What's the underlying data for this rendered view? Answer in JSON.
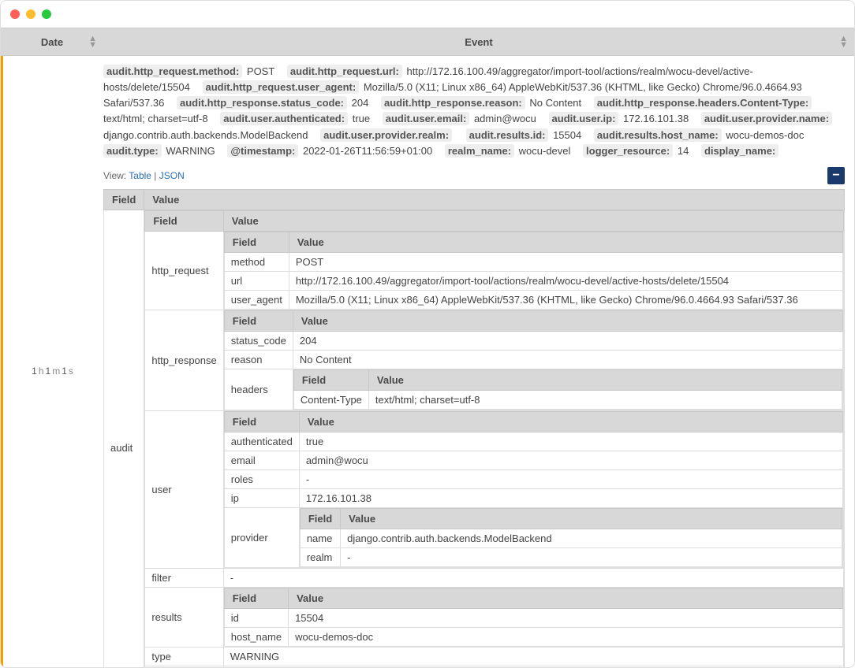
{
  "colors": {
    "header_bg": "#d8d8d8",
    "accent": "#f0a000",
    "chip_bg": "#eeeeee",
    "link": "#2a6fb5",
    "collapse_bg": "#1a3a6e",
    "border": "#dddddd"
  },
  "header": {
    "date": "Date",
    "event": "Event"
  },
  "date_cell": {
    "h": "1",
    "m": "1",
    "s": "1",
    "u_h": "h",
    "u_m": "m",
    "u_s": "s"
  },
  "th": {
    "field": "Field",
    "value": "Value"
  },
  "view": {
    "label": "View:",
    "table": "Table",
    "sep": "|",
    "json": "JSON"
  },
  "summary": [
    {
      "k": "audit.http_request.method:",
      "v": "POST"
    },
    {
      "k": "audit.http_request.url:",
      "v": "http://172.16.100.49/aggregator/import-tool/actions/realm/wocu-devel/active-hosts/delete/15504"
    },
    {
      "k": "audit.http_request.user_agent:",
      "v": "Mozilla/5.0 (X11; Linux x86_64) AppleWebKit/537.36 (KHTML, like Gecko) Chrome/96.0.4664.93 Safari/537.36"
    },
    {
      "k": "audit.http_response.status_code:",
      "v": "204"
    },
    {
      "k": "audit.http_response.reason:",
      "v": "No Content"
    },
    {
      "k": "audit.http_response.headers.Content-Type:",
      "v": "text/html; charset=utf-8"
    },
    {
      "k": "audit.user.authenticated:",
      "v": "true"
    },
    {
      "k": "audit.user.email:",
      "v": "admin@wocu"
    },
    {
      "k": "audit.user.ip:",
      "v": "172.16.101.38"
    },
    {
      "k": "audit.user.provider.name:",
      "v": "django.contrib.auth.backends.ModelBackend"
    },
    {
      "k": "audit.user.provider.realm:",
      "v": ""
    },
    {
      "k": "audit.results.id:",
      "v": "15504"
    },
    {
      "k": "audit.results.host_name:",
      "v": "wocu-demos-doc"
    },
    {
      "k": "audit.type:",
      "v": "WARNING"
    },
    {
      "k": "@timestamp:",
      "v": "2022-01-26T11:56:59+01:00"
    },
    {
      "k": "realm_name:",
      "v": "wocu-devel"
    },
    {
      "k": "logger_resource:",
      "v": "14"
    },
    {
      "k": "display_name:",
      "v": ""
    }
  ],
  "tree": {
    "audit": {
      "http_request": {
        "method": "POST",
        "url": "http://172.16.100.49/aggregator/import-tool/actions/realm/wocu-devel/active-hosts/delete/15504",
        "user_agent": "Mozilla/5.0 (X11; Linux x86_64) AppleWebKit/537.36 (KHTML, like Gecko) Chrome/96.0.4664.93 Safari/537.36"
      },
      "http_response": {
        "status_code": "204",
        "reason": "No Content",
        "headers": {
          "Content-Type": "text/html; charset=utf-8"
        }
      },
      "user": {
        "authenticated": "true",
        "email": "admin@wocu",
        "roles": "-",
        "ip": "172.16.101.38",
        "provider": {
          "name": "django.contrib.auth.backends.ModelBackend",
          "realm": "-"
        }
      },
      "filter": "-",
      "results": {
        "id": "15504",
        "host_name": "wocu-demos-doc"
      },
      "type": "WARNING",
      "message": "-"
    }
  }
}
